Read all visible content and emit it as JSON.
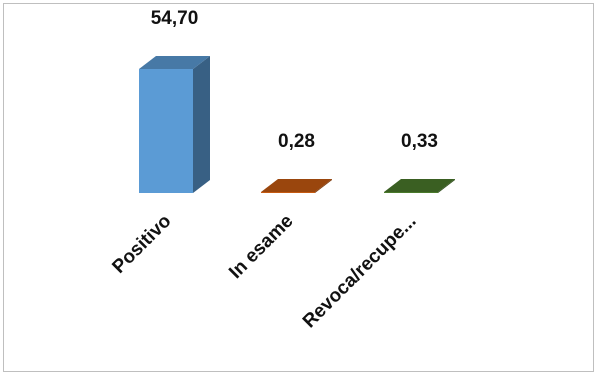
{
  "chart_data": {
    "type": "bar",
    "style": "3d",
    "categories": [
      "Positivo",
      "In esame",
      "Revoca/recupe..."
    ],
    "values": [
      54.7,
      0.28,
      0.33
    ],
    "value_labels": [
      "54,70",
      "0,28",
      "0,33"
    ],
    "series": [
      {
        "values": [
          54.7,
          0.28,
          0.33
        ]
      }
    ],
    "colors": [
      "#5b9bd5",
      "#c55a11",
      "#4a7a2c"
    ],
    "ylim": [
      0,
      60
    ],
    "grid": false,
    "legend": "none"
  }
}
